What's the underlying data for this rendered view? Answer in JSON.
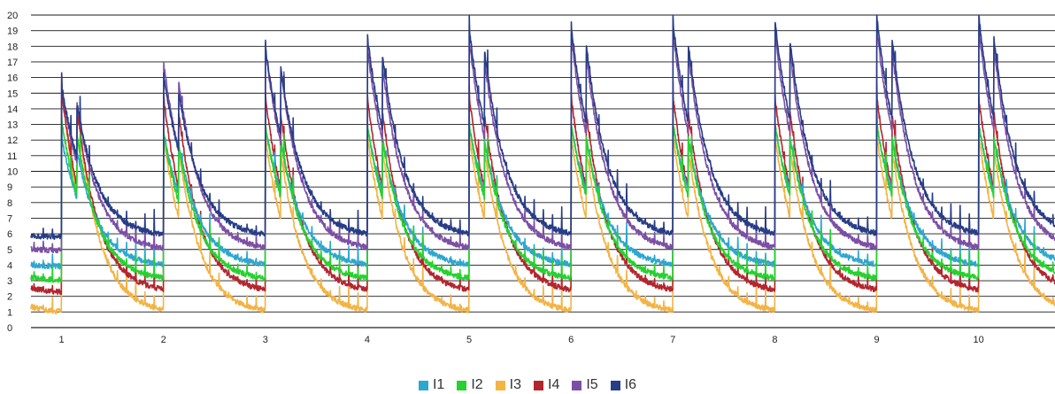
{
  "chart_data": {
    "type": "line",
    "title": "",
    "xlabel": "",
    "ylabel": "",
    "xlim": [
      0.7,
      10.75
    ],
    "ylim": [
      0,
      20
    ],
    "y_ticks": [
      "0",
      "1",
      "2",
      "3",
      "4",
      "5",
      "6",
      "7",
      "8",
      "9",
      "10",
      "11",
      "12",
      "13",
      "14",
      "15",
      "16",
      "17",
      "18",
      "19",
      "20"
    ],
    "x_ticks": [
      "1",
      "2",
      "3",
      "4",
      "5",
      "6",
      "7",
      "8",
      "9",
      "10"
    ],
    "grid": "horizontal",
    "legend_position": "bottom",
    "colors": {
      "I1": "#2ea7cf",
      "I2": "#27d12f",
      "I3": "#f3b345",
      "I4": "#b3262e",
      "I5": "#7c4fa6",
      "I6": "#273d86"
    },
    "series": [
      {
        "name": "I1",
        "color": "#2ea7cf",
        "peaks": [
          12.2,
          12.6,
          12.9,
          12.9,
          12.9,
          13.0,
          13.0,
          13.0,
          13.0,
          13.0
        ],
        "baseline": 3.9
      },
      {
        "name": "I2",
        "color": "#27d12f",
        "peaks": [
          13.3,
          12.5,
          13.0,
          13.0,
          13.0,
          13.1,
          13.1,
          13.1,
          13.1,
          13.1
        ],
        "baseline": 3.0
      },
      {
        "name": "I3",
        "color": "#f3b345",
        "peaks": [
          15.3,
          12.3,
          12.2,
          12.3,
          12.3,
          12.3,
          12.3,
          12.3,
          12.3,
          12.3
        ],
        "baseline": 0.9
      },
      {
        "name": "I4",
        "color": "#b3262e",
        "peaks": [
          15.2,
          14.8,
          14.8,
          14.8,
          14.8,
          14.8,
          14.8,
          14.8,
          14.8,
          14.8
        ],
        "baseline": 2.2
      },
      {
        "name": "I5",
        "color": "#7c4fa6",
        "peaks": [
          15.5,
          17.0,
          17.9,
          18.0,
          18.5,
          18.8,
          19.0,
          19.0,
          19.2,
          19.3
        ],
        "baseline": 4.9
      },
      {
        "name": "I6",
        "color": "#273d86",
        "peaks": [
          15.5,
          16.2,
          18.0,
          18.7,
          19.2,
          19.4,
          19.6,
          19.7,
          19.9,
          20.0
        ],
        "baseline": 5.8
      }
    ]
  },
  "legend": [
    {
      "label": "I1",
      "color": "#2ea7cf"
    },
    {
      "label": "I2",
      "color": "#27d12f"
    },
    {
      "label": "I3",
      "color": "#f3b345"
    },
    {
      "label": "I4",
      "color": "#b3262e"
    },
    {
      "label": "I5",
      "color": "#7c4fa6"
    },
    {
      "label": "I6",
      "color": "#273d86"
    }
  ]
}
